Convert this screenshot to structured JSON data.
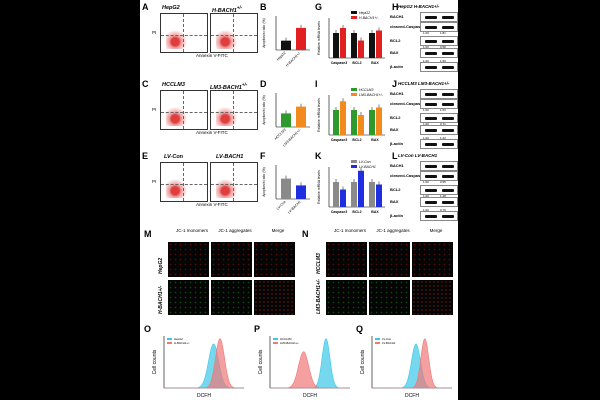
{
  "panels": {
    "A": {
      "letter": "A",
      "left_title": "HepG2",
      "right_title": "H-BACH1",
      "sup": "+/-",
      "ylabel": "PI",
      "xlabel": "Annexin V-FITC"
    },
    "B": {
      "letter": "B",
      "ylabel": "Apoptosis ratio (%)",
      "cats": [
        "HepG2",
        "H-BACH1+/-"
      ],
      "values": [
        5.5,
        13
      ],
      "ylim": [
        0,
        20
      ],
      "colors": [
        "#111111",
        "#e32020"
      ]
    },
    "C": {
      "letter": "C",
      "left_title": "HCCLM3",
      "right_title": "LM3-BACH1",
      "sup": "+/-",
      "ylabel": "PI",
      "xlabel": "Annexin V-FITC"
    },
    "D": {
      "letter": "D",
      "ylabel": "Apoptosis ratio (%)",
      "cats": [
        "HCCLM3",
        "LM3-BACH1+/-"
      ],
      "values": [
        8,
        12
      ],
      "ylim": [
        0,
        20
      ],
      "colors": [
        "#2e9a2e",
        "#f28a1e"
      ]
    },
    "E": {
      "letter": "E",
      "left_title": "LV-Con",
      "right_title": "LV-BACH1",
      "ylabel": "PI",
      "xlabel": "Annexin V-FITC"
    },
    "F": {
      "letter": "F",
      "ylabel": "Apoptosis ratio (%)",
      "cats": [
        "LV-Con",
        "LV-BACH1"
      ],
      "values": [
        12,
        8
      ],
      "ylim": [
        0,
        20
      ],
      "colors": [
        "#8a8a8a",
        "#1f2fe0"
      ]
    },
    "G": {
      "letter": "G",
      "ylabel": "Relative mRNA levels",
      "legend": [
        "HepG2",
        "H-BACH1+/-"
      ],
      "cats": [
        "Caspase3",
        "BCL2",
        "BAX"
      ],
      "series": [
        {
          "values": [
            1.0,
            1.0,
            1.0
          ],
          "color": "#111111"
        },
        {
          "values": [
            1.2,
            0.7,
            1.1
          ],
          "color": "#e32020"
        }
      ]
    },
    "I": {
      "letter": "I",
      "ylabel": "Relative mRNA levels",
      "legend": [
        "HCCLM3",
        "LM3-BACH1+/-"
      ],
      "cats": [
        "Caspase3",
        "BCL2",
        "BAX"
      ],
      "series": [
        {
          "values": [
            1.0,
            1.0,
            1.0
          ],
          "color": "#2e9a2e"
        },
        {
          "values": [
            1.35,
            0.8,
            1.1
          ],
          "color": "#f28a1e"
        }
      ]
    },
    "K": {
      "letter": "K",
      "ylabel": "Relative mRNA levels",
      "legend": [
        "LV-Con",
        "LV-BACH1"
      ],
      "cats": [
        "Caspase3",
        "BCL2",
        "BAX"
      ],
      "series": [
        {
          "values": [
            1.0,
            1.0,
            1.0
          ],
          "color": "#8a8a8a"
        },
        {
          "values": [
            0.7,
            1.45,
            0.9
          ],
          "color": "#1f2fe0"
        }
      ]
    },
    "H": {
      "letter": "H",
      "header": "HepG2 H-BACH1+/-",
      "rows": [
        "BACH1",
        "cleaved-Caspase3",
        "BCL2",
        "BAX",
        "β-actin"
      ],
      "nums": [
        "1.00",
        "1.81",
        "1.00",
        "0.58",
        "1.00",
        "1.50"
      ]
    },
    "J": {
      "letter": "J",
      "header": "HCCLM3 LM3-BACH1+/-",
      "rows": [
        "BACH1",
        "cleaved-Caspase3",
        "BCL2",
        "BAX",
        "β-actin"
      ],
      "nums": [
        "1.00",
        "1.63",
        "1.00",
        "0.71",
        "1.00",
        "1.22"
      ]
    },
    "L": {
      "letter": "L",
      "header": "LV-Con LV-BACH1",
      "rows": [
        "BACH1",
        "cleaved-Caspase3",
        "BCL2",
        "BAX",
        "β-actin"
      ],
      "nums": [
        "1.00",
        "0.55",
        "1.00",
        "1.48",
        "1.00",
        "0.76"
      ]
    },
    "M": {
      "letter": "M",
      "cols": [
        "JC-1 monomers",
        "JC-1 aggregates",
        "Merge"
      ],
      "rows": [
        "HepG2",
        "H-BACH1+/-"
      ]
    },
    "N": {
      "letter": "N",
      "cols": [
        "JC-1 monomers",
        "JC-1 aggregates",
        "Merge"
      ],
      "rows": [
        "HCCLM3",
        "LM3-BACH1+/-"
      ]
    },
    "O": {
      "letter": "O",
      "ylabel": "Cell counts",
      "xlabel": "DCFH",
      "legend": [
        "HepG2",
        "H-BACH1+/-"
      ]
    },
    "P": {
      "letter": "P",
      "ylabel": "Cell counts",
      "xlabel": "DCFH",
      "legend": [
        "HCCLM3",
        "LM3-BACH1+/-"
      ]
    },
    "Q": {
      "letter": "Q",
      "ylabel": "Cell counts",
      "xlabel": "DCFH",
      "legend": [
        "LV-Con",
        "LV-BACH1"
      ]
    }
  },
  "colors": {
    "red": "#e32020",
    "cyan": "#3cc8e8",
    "pink": "#f07878"
  }
}
